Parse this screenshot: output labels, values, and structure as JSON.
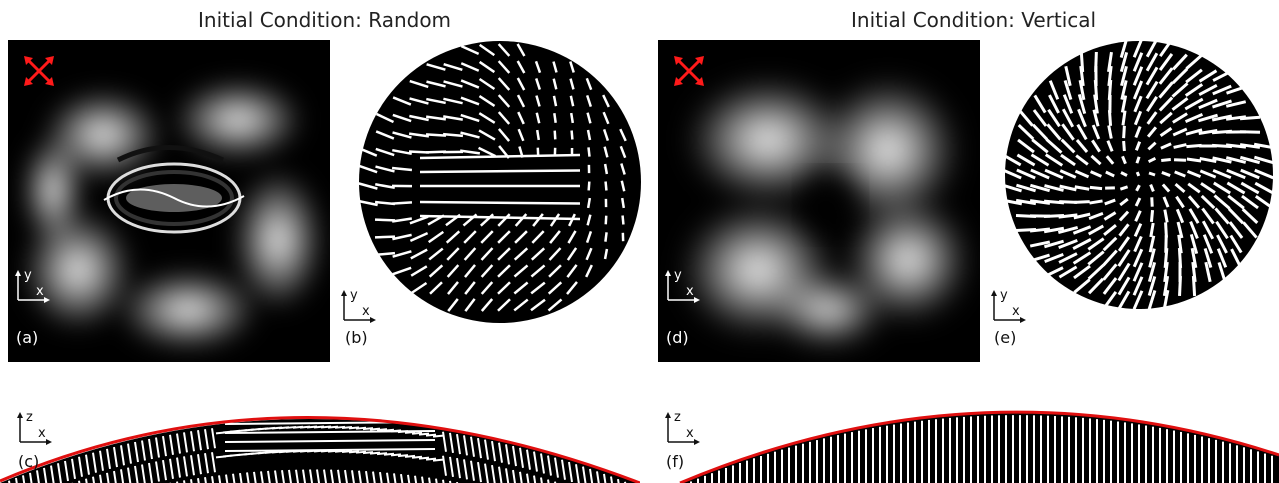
{
  "titles": {
    "left": "Initial Condition: Random",
    "right": "Initial Condition: Vertical"
  },
  "panel_labels": {
    "a": "(a)",
    "b": "(b)",
    "c": "(c)",
    "d": "(d)",
    "e": "(e)",
    "f": "(f)"
  },
  "axis_labels": {
    "x": "x",
    "y": "y",
    "z": "z"
  },
  "icons": {
    "polarizer": "crossed-polarizer-arrows-icon"
  },
  "colors": {
    "polarizer_arrows": "#ff1a1a",
    "boundary": "#e01010",
    "director": "#ffffff",
    "background": "#000000"
  }
}
